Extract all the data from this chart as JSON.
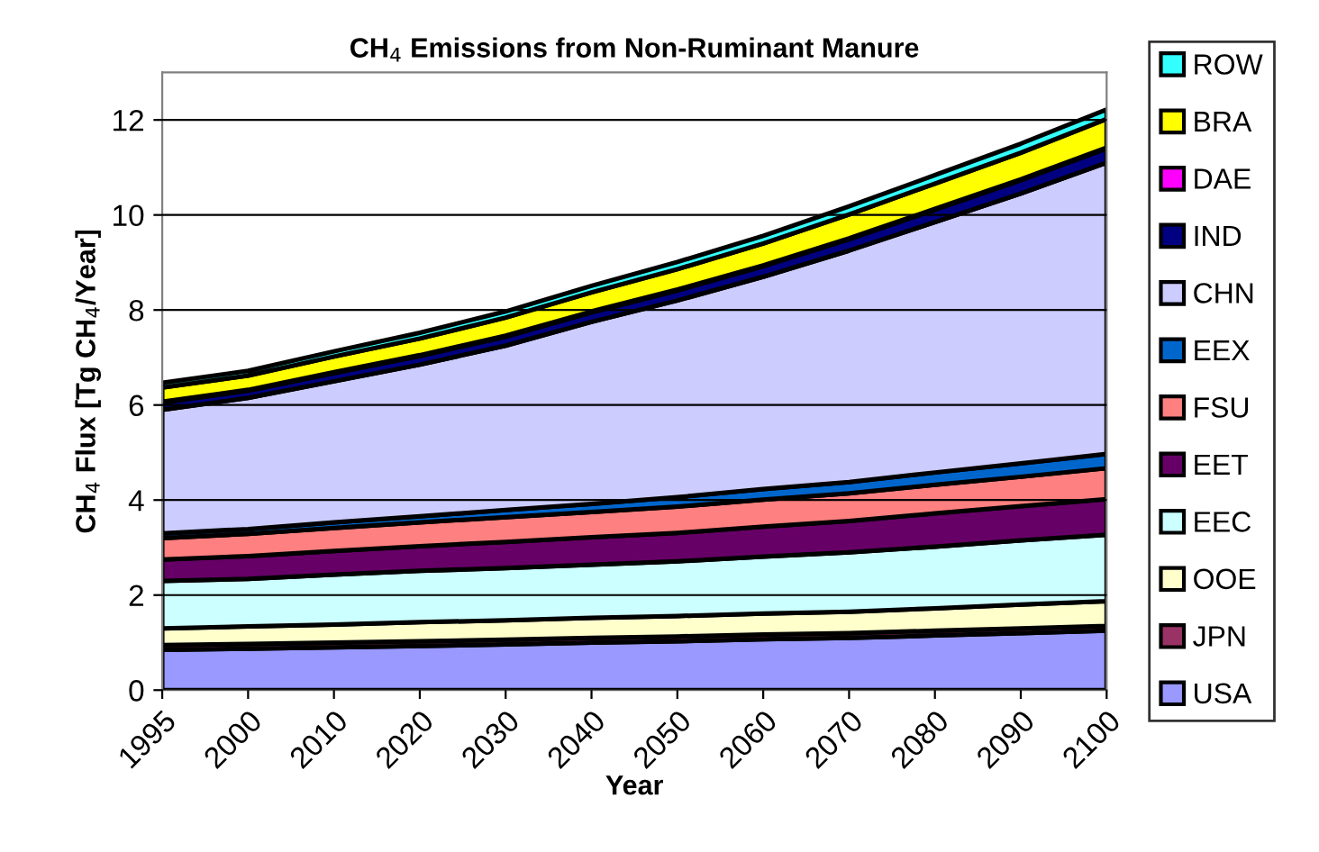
{
  "chart_data": {
    "type": "area",
    "stacked": true,
    "title": "CH$_{4}$ Emissions from Non-Ruminant Manure",
    "xlabel": "Year",
    "ylabel": "CH$_{4}$ Flux [Tg CH$_{4}$/Year]",
    "categories": [
      "1995",
      "2000",
      "2010",
      "2020",
      "2030",
      "2040",
      "2050",
      "2060",
      "2070",
      "2080",
      "2090",
      "2100"
    ],
    "ylim": [
      0,
      13
    ],
    "yticks": [
      0,
      2,
      4,
      6,
      8,
      10,
      12
    ],
    "grid": "y",
    "legend": "right",
    "series": [
      {
        "name": "USA",
        "color": "#9999ff",
        "values": [
          0.85,
          0.87,
          0.9,
          0.93,
          0.96,
          1.0,
          1.03,
          1.07,
          1.1,
          1.15,
          1.2,
          1.25
        ]
      },
      {
        "name": "JPN",
        "color": "#993366",
        "values": [
          0.1,
          0.1,
          0.1,
          0.1,
          0.1,
          0.1,
          0.1,
          0.1,
          0.1,
          0.1,
          0.1,
          0.1
        ]
      },
      {
        "name": "OOE",
        "color": "#ffffcc",
        "values": [
          0.35,
          0.37,
          0.38,
          0.4,
          0.41,
          0.42,
          0.43,
          0.44,
          0.45,
          0.47,
          0.5,
          0.52
        ]
      },
      {
        "name": "EEC",
        "color": "#ccffff",
        "values": [
          1.0,
          1.0,
          1.05,
          1.08,
          1.1,
          1.12,
          1.15,
          1.2,
          1.25,
          1.3,
          1.35,
          1.4
        ]
      },
      {
        "name": "EET",
        "color": "#660066",
        "values": [
          0.45,
          0.48,
          0.5,
          0.52,
          0.55,
          0.58,
          0.6,
          0.63,
          0.66,
          0.7,
          0.72,
          0.75
        ]
      },
      {
        "name": "FSU",
        "color": "#ff8080",
        "values": [
          0.45,
          0.47,
          0.48,
          0.5,
          0.52,
          0.53,
          0.55,
          0.57,
          0.58,
          0.6,
          0.62,
          0.65
        ]
      },
      {
        "name": "EEX",
        "color": "#0066cc",
        "values": [
          0.1,
          0.1,
          0.12,
          0.13,
          0.15,
          0.17,
          0.2,
          0.22,
          0.24,
          0.26,
          0.28,
          0.3
        ]
      },
      {
        "name": "CHN",
        "color": "#ccccff",
        "values": [
          2.6,
          2.76,
          2.97,
          3.19,
          3.46,
          3.83,
          4.14,
          4.47,
          4.87,
          5.27,
          5.68,
          6.13
        ]
      },
      {
        "name": "IND",
        "color": "#000080",
        "values": [
          0.15,
          0.15,
          0.17,
          0.18,
          0.19,
          0.2,
          0.21,
          0.22,
          0.24,
          0.26,
          0.28,
          0.3
        ]
      },
      {
        "name": "DAE",
        "color": "#ff00ff",
        "values": [
          0.02,
          0.02,
          0.02,
          0.02,
          0.02,
          0.02,
          0.02,
          0.02,
          0.02,
          0.02,
          0.02,
          0.02
        ]
      },
      {
        "name": "BRA",
        "color": "#ffff00",
        "values": [
          0.3,
          0.3,
          0.33,
          0.35,
          0.38,
          0.4,
          0.43,
          0.46,
          0.5,
          0.53,
          0.56,
          0.6
        ]
      },
      {
        "name": "ROW",
        "color": "#33ffff",
        "values": [
          0.1,
          0.1,
          0.11,
          0.12,
          0.13,
          0.14,
          0.15,
          0.16,
          0.17,
          0.18,
          0.19,
          0.2
        ]
      }
    ]
  }
}
